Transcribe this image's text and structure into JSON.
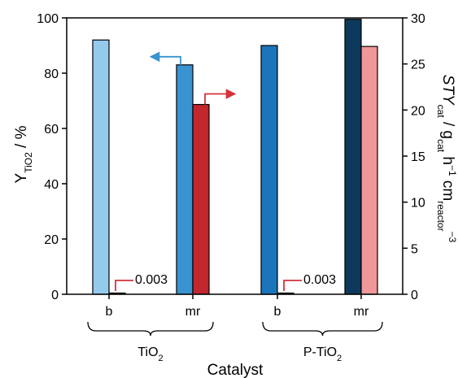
{
  "chart_data": {
    "type": "bar",
    "categories": [
      "b",
      "mr",
      "b",
      "mr"
    ],
    "groups": [
      {
        "label": "TiO",
        "label_sub": "2",
        "category_indices": [
          0,
          1
        ]
      },
      {
        "label": "P-TiO",
        "label_sub": "2",
        "category_indices": [
          2,
          3
        ]
      }
    ],
    "xlabel": "Catalyst",
    "ylabel": {
      "main": "Y",
      "sub": "TiO2",
      "suffix": " / %"
    },
    "ylabel_right": {
      "main": "STY",
      "sub1": "cat",
      "mid1": " / g",
      "sub2": "cat",
      "mid2": " h",
      "sup1": "−1",
      "mid3": " cm",
      "sub3": "reactor",
      "sup2": "−3"
    },
    "ylim": [
      0,
      100
    ],
    "ylim_right": [
      0,
      30
    ],
    "yticks": [
      0,
      20,
      40,
      60,
      80,
      100
    ],
    "yticks_right": [
      0,
      5,
      10,
      15,
      20,
      25,
      30
    ],
    "series": [
      {
        "axis": "left",
        "values": [
          92,
          83,
          90,
          99.5
        ],
        "colors": [
          "#94cbec",
          "#3a93d1",
          "#1b75bb",
          "#0d3a5c"
        ]
      },
      {
        "axis": "right",
        "values": [
          0.003,
          20.6,
          0.003,
          26.9
        ],
        "colors": [
          "#b9232b",
          "#c1272d",
          "#b9232b",
          "#f0979a"
        ]
      }
    ],
    "annotations": [
      {
        "text": "0.003",
        "category_index": 0
      },
      {
        "text": "0.003",
        "category_index": 2
      }
    ],
    "axis_indicators": [
      {
        "series": 0,
        "category_index": 1,
        "direction": "left",
        "color": "#3a93d1"
      },
      {
        "series": 1,
        "category_index": 1,
        "direction": "right",
        "color": "#d3333a"
      }
    ]
  }
}
